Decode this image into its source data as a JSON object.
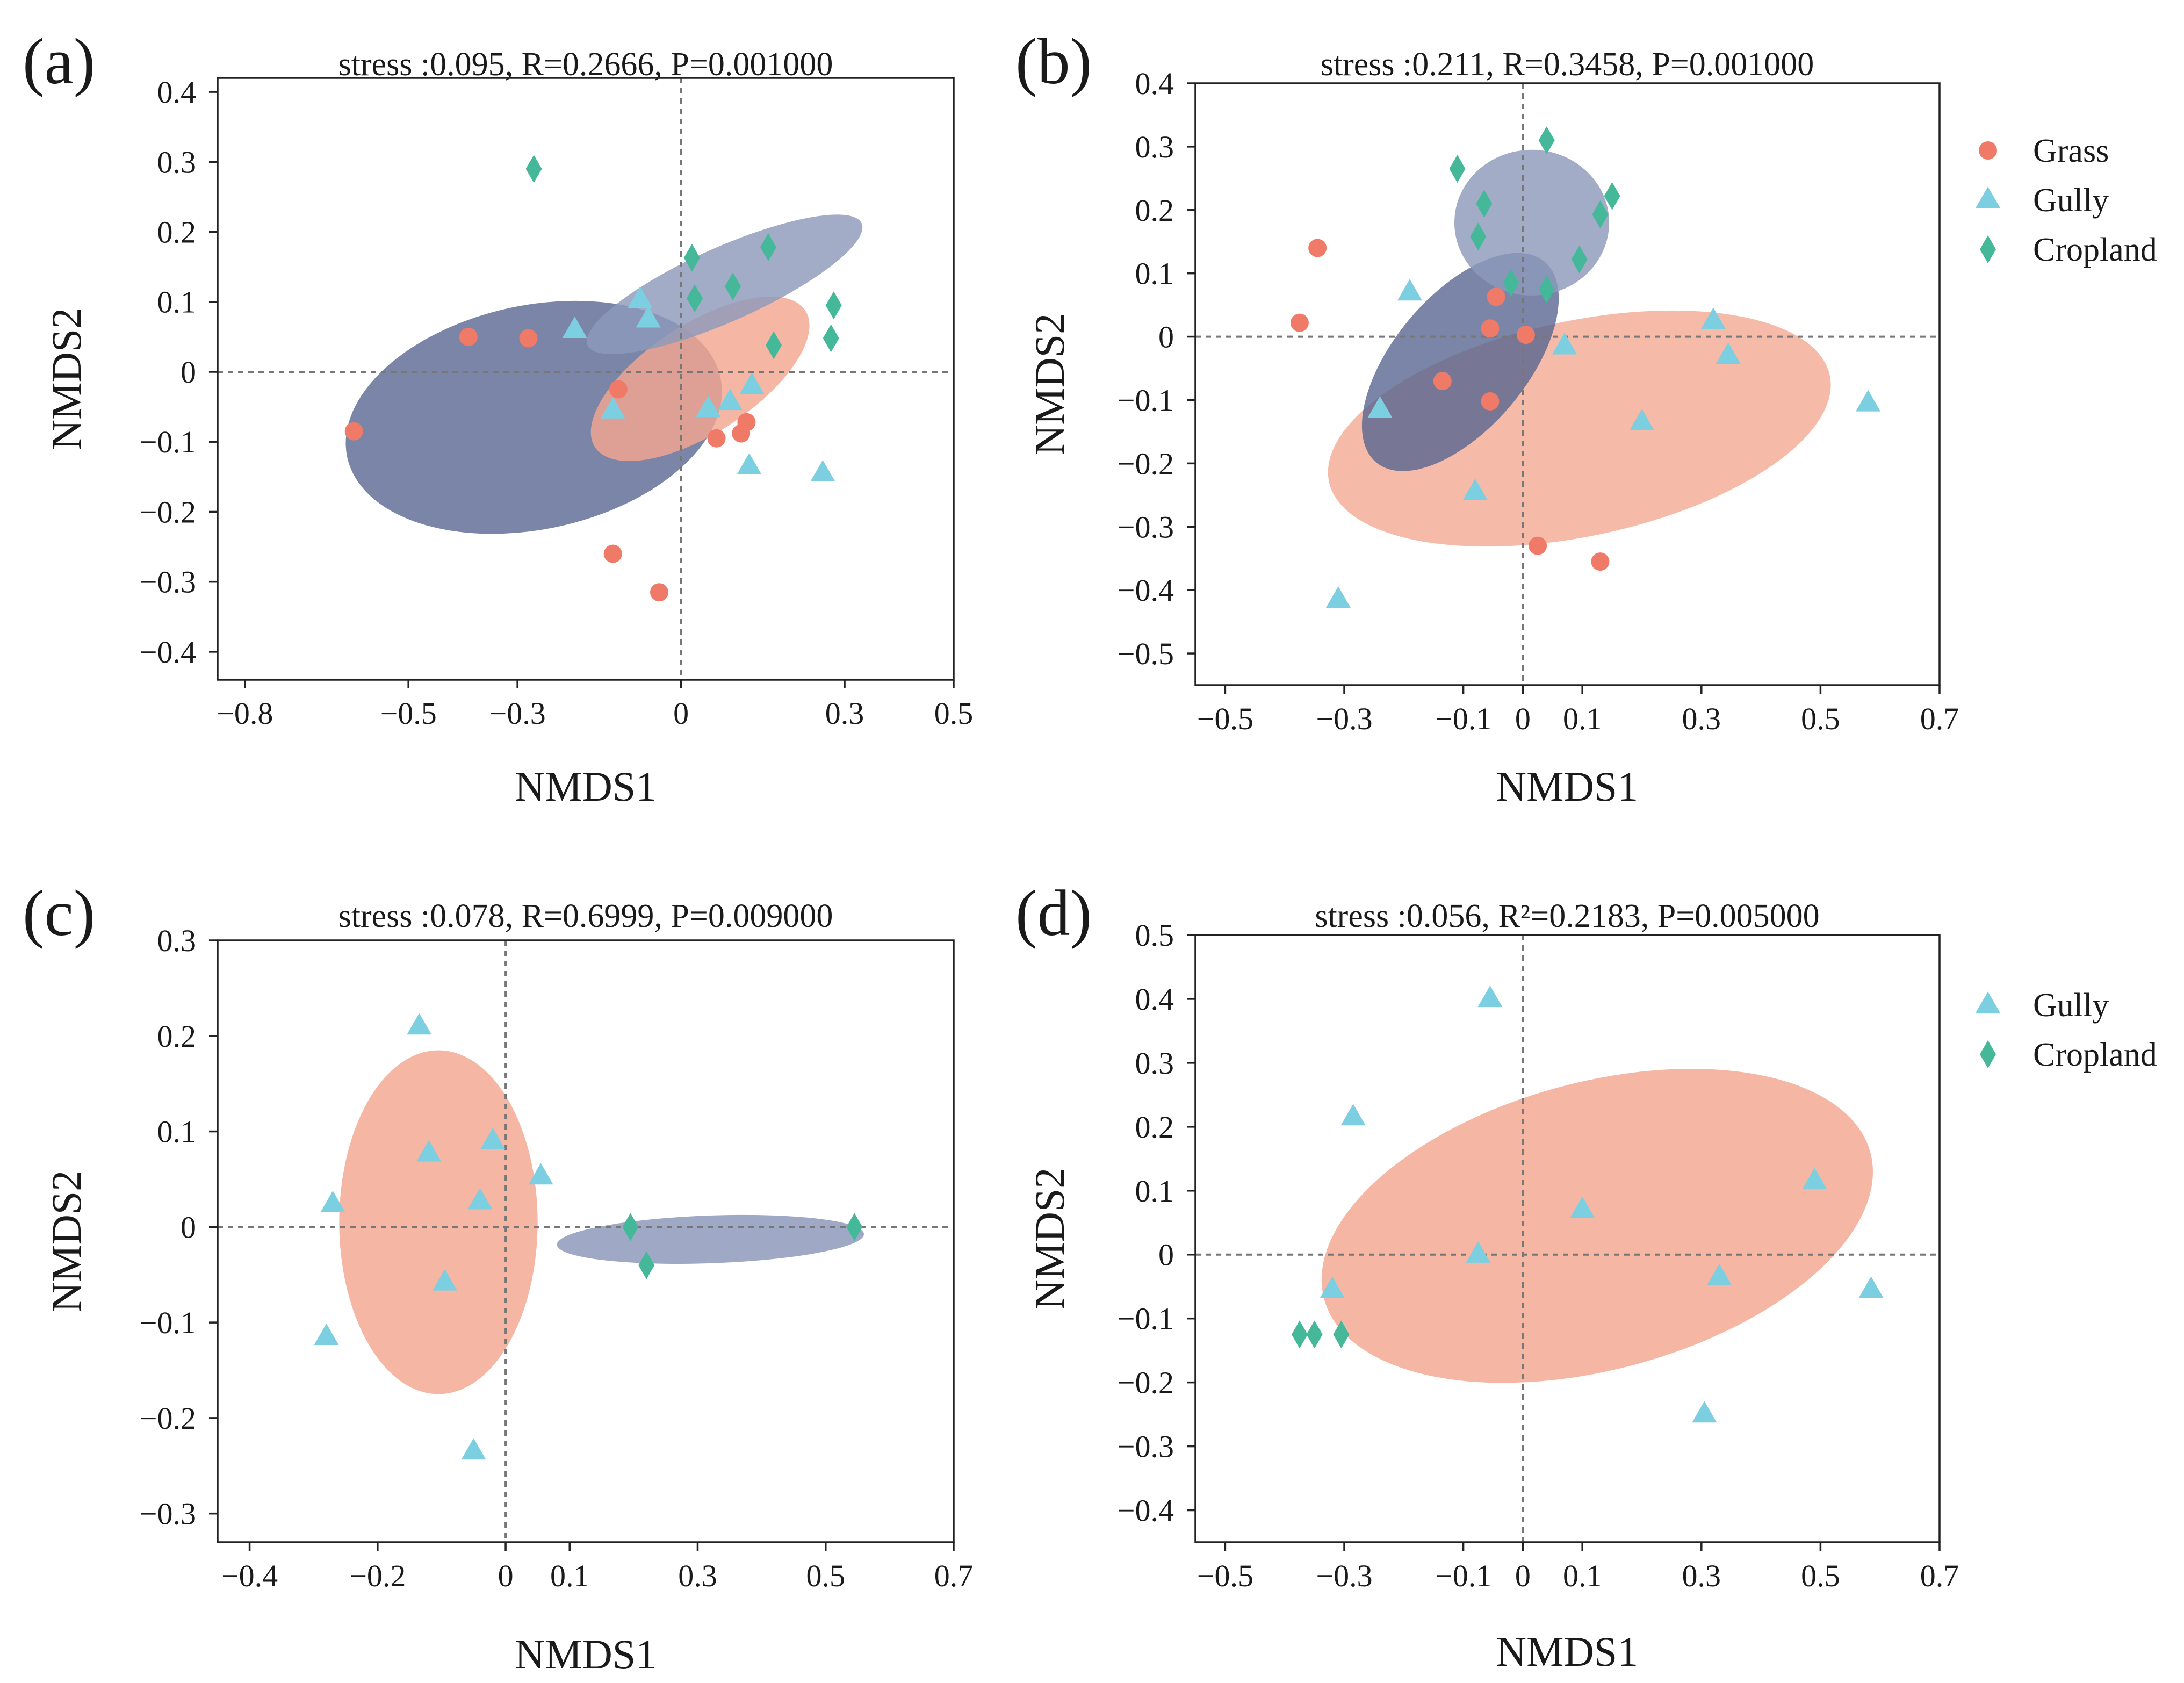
{
  "colors": {
    "grass": "#f07a68",
    "gully": "#7ccfe0",
    "cropland": "#45b89a",
    "ellipse_dark": "#54638f",
    "ellipse_light": "#8e9abb",
    "ellipse_salmon": "#f4a690"
  },
  "chart_data": [
    {
      "panel": "(a)",
      "type": "scatter",
      "stats": "stress :0.095, R=0.2666, P=0.001000",
      "xlabel": "NMDS1",
      "ylabel": "NMDS2",
      "xlim": [
        -0.85,
        0.5
      ],
      "ylim": [
        -0.44,
        0.42
      ],
      "xticks": [
        {
          "v": -0.8,
          "label": "−0.8"
        },
        {
          "v": -0.5,
          "label": "−0.5"
        },
        {
          "v": -0.3,
          "label": "−0.3"
        },
        {
          "v": 0,
          "label": "0"
        },
        {
          "v": 0.3,
          "label": "0.3"
        },
        {
          "v": 0.5,
          "label": "0.5"
        }
      ],
      "yticks": [
        {
          "v": 0.4,
          "label": "0.4"
        },
        {
          "v": 0.3,
          "label": "0.3"
        },
        {
          "v": 0.2,
          "label": "0.2"
        },
        {
          "v": 0.1,
          "label": "0.1"
        },
        {
          "v": 0,
          "label": "0"
        },
        {
          "v": -0.1,
          "label": "−0.1"
        },
        {
          "v": -0.2,
          "label": "−0.2"
        },
        {
          "v": -0.3,
          "label": "−0.3"
        },
        {
          "v": -0.4,
          "label": "−0.4"
        }
      ],
      "ellipses": [
        {
          "group": "Grass",
          "color": "#54638f",
          "opacity": 0.78,
          "cx": -0.27,
          "cy": -0.065,
          "rx": 0.35,
          "ry": 0.16,
          "angle": -12
        },
        {
          "group": "Gully",
          "color": "#f4a690",
          "opacity": 0.82,
          "cx": 0.035,
          "cy": -0.01,
          "rx": 0.23,
          "ry": 0.078,
          "angle": -33
        },
        {
          "group": "Cropland",
          "color": "#8e9abb",
          "opacity": 0.82,
          "cx": 0.08,
          "cy": 0.125,
          "rx": 0.275,
          "ry": 0.053,
          "angle": -24
        }
      ],
      "series": [
        {
          "name": "Grass",
          "marker": "circle",
          "points": [
            [
              -0.6,
              -0.085
            ],
            [
              -0.39,
              0.05
            ],
            [
              -0.28,
              0.048
            ],
            [
              -0.115,
              -0.025
            ],
            [
              -0.125,
              -0.26
            ],
            [
              -0.04,
              -0.315
            ],
            [
              0.065,
              -0.095
            ],
            [
              0.11,
              -0.088
            ],
            [
              0.12,
              -0.072
            ]
          ]
        },
        {
          "name": "Gully",
          "marker": "triangle",
          "points": [
            [
              -0.195,
              0.06
            ],
            [
              -0.075,
              0.103
            ],
            [
              -0.06,
              0.075
            ],
            [
              -0.125,
              -0.055
            ],
            [
              0.05,
              -0.053
            ],
            [
              0.09,
              -0.043
            ],
            [
              0.13,
              -0.02
            ],
            [
              0.125,
              -0.135
            ],
            [
              0.26,
              -0.145
            ]
          ]
        },
        {
          "name": "Cropland",
          "marker": "diamond",
          "points": [
            [
              -0.27,
              0.29
            ],
            [
              0.02,
              0.163
            ],
            [
              0.025,
              0.105
            ],
            [
              0.095,
              0.122
            ],
            [
              0.16,
              0.178
            ],
            [
              0.17,
              0.038
            ],
            [
              0.28,
              0.095
            ],
            [
              0.275,
              0.048
            ]
          ]
        }
      ],
      "legend": []
    },
    {
      "panel": "(b)",
      "type": "scatter",
      "stats": "stress :0.211, R=0.3458, P=0.001000",
      "xlabel": "NMDS1",
      "ylabel": "NMDS2",
      "xlim": [
        -0.55,
        0.7
      ],
      "ylim": [
        -0.55,
        0.4
      ],
      "xticks": [
        {
          "v": -0.5,
          "label": "−0.5"
        },
        {
          "v": -0.3,
          "label": "−0.3"
        },
        {
          "v": -0.1,
          "label": "−0.1"
        },
        {
          "v": 0,
          "label": "0"
        },
        {
          "v": 0.1,
          "label": "0.1"
        },
        {
          "v": 0.3,
          "label": "0.3"
        },
        {
          "v": 0.5,
          "label": "0.5"
        },
        {
          "v": 0.7,
          "label": "0.7"
        }
      ],
      "yticks": [
        {
          "v": 0.4,
          "label": "0.4"
        },
        {
          "v": 0.3,
          "label": "0.3"
        },
        {
          "v": 0.2,
          "label": "0.2"
        },
        {
          "v": 0.1,
          "label": "0.1"
        },
        {
          "v": 0,
          "label": "0"
        },
        {
          "v": -0.1,
          "label": "−0.1"
        },
        {
          "v": -0.2,
          "label": "−0.2"
        },
        {
          "v": -0.3,
          "label": "−0.3"
        },
        {
          "v": -0.4,
          "label": "−0.4"
        },
        {
          "v": -0.5,
          "label": "−0.5"
        }
      ],
      "ellipses": [
        {
          "group": "Gully",
          "color": "#f4a690",
          "opacity": 0.78,
          "cx": 0.095,
          "cy": -0.145,
          "rx": 0.43,
          "ry": 0.17,
          "angle": -12
        },
        {
          "group": "Grass",
          "color": "#54638f",
          "opacity": 0.78,
          "cx": -0.105,
          "cy": -0.04,
          "rx": 0.22,
          "ry": 0.105,
          "angle": -50
        },
        {
          "group": "Cropland",
          "color": "#8e9abb",
          "opacity": 0.82,
          "cx": 0.015,
          "cy": 0.18,
          "rx": 0.13,
          "ry": 0.115,
          "angle": 0
        }
      ],
      "series": [
        {
          "name": "Grass",
          "marker": "circle",
          "points": [
            [
              -0.375,
              0.022
            ],
            [
              -0.345,
              0.14
            ],
            [
              -0.045,
              0.063
            ],
            [
              -0.055,
              0.013
            ],
            [
              0.005,
              0.003
            ],
            [
              -0.135,
              -0.07
            ],
            [
              -0.055,
              -0.102
            ],
            [
              0.025,
              -0.33
            ],
            [
              0.13,
              -0.355
            ]
          ]
        },
        {
          "name": "Gully",
          "marker": "triangle",
          "points": [
            [
              -0.19,
              0.07
            ],
            [
              -0.24,
              -0.115
            ],
            [
              -0.08,
              -0.245
            ],
            [
              0.07,
              -0.015
            ],
            [
              0.2,
              -0.135
            ],
            [
              0.32,
              0.025
            ],
            [
              0.345,
              -0.03
            ],
            [
              0.58,
              -0.105
            ],
            [
              -0.31,
              -0.415
            ]
          ]
        },
        {
          "name": "Cropland",
          "marker": "diamond",
          "points": [
            [
              -0.11,
              0.265
            ],
            [
              -0.065,
              0.21
            ],
            [
              -0.075,
              0.158
            ],
            [
              0.04,
              0.31
            ],
            [
              0.15,
              0.222
            ],
            [
              0.13,
              0.193
            ],
            [
              0.095,
              0.122
            ],
            [
              -0.02,
              0.085
            ],
            [
              0.04,
              0.075
            ]
          ]
        }
      ],
      "legend": [
        {
          "label": "Grass",
          "marker": "circle"
        },
        {
          "label": "Gully",
          "marker": "triangle"
        },
        {
          "label": "Cropland",
          "marker": "diamond"
        }
      ]
    },
    {
      "panel": "(c)",
      "type": "scatter",
      "stats": "stress :0.078, R=0.6999, P=0.009000",
      "xlabel": "NMDS1",
      "ylabel": "NMDS2",
      "xlim": [
        -0.45,
        0.7
      ],
      "ylim": [
        -0.33,
        0.3
      ],
      "xticks": [
        {
          "v": -0.4,
          "label": "−0.4"
        },
        {
          "v": -0.2,
          "label": "−0.2"
        },
        {
          "v": 0,
          "label": "0"
        },
        {
          "v": 0.1,
          "label": "0.1"
        },
        {
          "v": 0.3,
          "label": "0.3"
        },
        {
          "v": 0.5,
          "label": "0.5"
        },
        {
          "v": 0.7,
          "label": "0.7"
        }
      ],
      "yticks": [
        {
          "v": 0.3,
          "label": "0.3"
        },
        {
          "v": 0.2,
          "label": "0.2"
        },
        {
          "v": 0.1,
          "label": "0.1"
        },
        {
          "v": 0,
          "label": "0"
        },
        {
          "v": -0.1,
          "label": "−0.1"
        },
        {
          "v": -0.2,
          "label": "−0.2"
        },
        {
          "v": -0.3,
          "label": "−0.3"
        }
      ],
      "ellipses": [
        {
          "group": "Gully",
          "color": "#f4a690",
          "opacity": 0.82,
          "cx": -0.105,
          "cy": 0.005,
          "rx": 0.155,
          "ry": 0.18,
          "angle": 0
        },
        {
          "group": "Cropland",
          "color": "#8e9abb",
          "opacity": 0.85,
          "cx": 0.32,
          "cy": -0.013,
          "rx": 0.24,
          "ry": 0.025,
          "angle": -2
        }
      ],
      "series": [
        {
          "name": "Gully",
          "marker": "triangle",
          "points": [
            [
              -0.135,
              0.21
            ],
            [
              -0.12,
              0.077
            ],
            [
              -0.02,
              0.09
            ],
            [
              -0.04,
              0.027
            ],
            [
              0.055,
              0.053
            ],
            [
              -0.27,
              0.024
            ],
            [
              -0.095,
              -0.058
            ],
            [
              -0.28,
              -0.115
            ],
            [
              -0.05,
              -0.235
            ]
          ]
        },
        {
          "name": "Cropland",
          "marker": "diamond",
          "points": [
            [
              0.195,
              0.0
            ],
            [
              0.22,
              -0.04
            ],
            [
              0.545,
              0.0
            ]
          ]
        }
      ],
      "legend": []
    },
    {
      "panel": "(d)",
      "type": "scatter",
      "stats": "stress :0.056, R²=0.2183, P=0.005000",
      "xlabel": "NMDS1",
      "ylabel": "NMDS2",
      "xlim": [
        -0.55,
        0.7
      ],
      "ylim": [
        -0.45,
        0.5
      ],
      "xticks": [
        {
          "v": -0.5,
          "label": "−0.5"
        },
        {
          "v": -0.3,
          "label": "−0.3"
        },
        {
          "v": -0.1,
          "label": "−0.1"
        },
        {
          "v": 0,
          "label": "0"
        },
        {
          "v": 0.1,
          "label": "0.1"
        },
        {
          "v": 0.3,
          "label": "0.3"
        },
        {
          "v": 0.5,
          "label": "0.5"
        },
        {
          "v": 0.7,
          "label": "0.7"
        }
      ],
      "yticks": [
        {
          "v": 0.5,
          "label": "0.5"
        },
        {
          "v": 0.4,
          "label": "0.4"
        },
        {
          "v": 0.3,
          "label": "0.3"
        },
        {
          "v": 0.2,
          "label": "0.2"
        },
        {
          "v": 0.1,
          "label": "0.1"
        },
        {
          "v": 0,
          "label": "0"
        },
        {
          "v": -0.1,
          "label": "−0.1"
        },
        {
          "v": -0.2,
          "label": "−0.2"
        },
        {
          "v": -0.3,
          "label": "−0.3"
        },
        {
          "v": -0.4,
          "label": "−0.4"
        }
      ],
      "ellipses": [
        {
          "group": "Gully",
          "color": "#f4a690",
          "opacity": 0.82,
          "cx": 0.125,
          "cy": 0.045,
          "rx": 0.475,
          "ry": 0.225,
          "angle": -15
        }
      ],
      "series": [
        {
          "name": "Gully",
          "marker": "triangle",
          "points": [
            [
              -0.055,
              0.4
            ],
            [
              -0.285,
              0.215
            ],
            [
              0.1,
              0.07
            ],
            [
              -0.075,
              0.0
            ],
            [
              0.33,
              -0.035
            ],
            [
              0.49,
              0.115
            ],
            [
              0.585,
              -0.055
            ],
            [
              -0.32,
              -0.055
            ],
            [
              0.305,
              -0.25
            ]
          ]
        },
        {
          "name": "Cropland",
          "marker": "diamond",
          "points": [
            [
              -0.375,
              -0.125
            ],
            [
              -0.35,
              -0.125
            ],
            [
              -0.305,
              -0.125
            ]
          ]
        }
      ],
      "legend": [
        {
          "label": "Gully",
          "marker": "triangle"
        },
        {
          "label": "Cropland",
          "marker": "diamond"
        }
      ]
    }
  ]
}
